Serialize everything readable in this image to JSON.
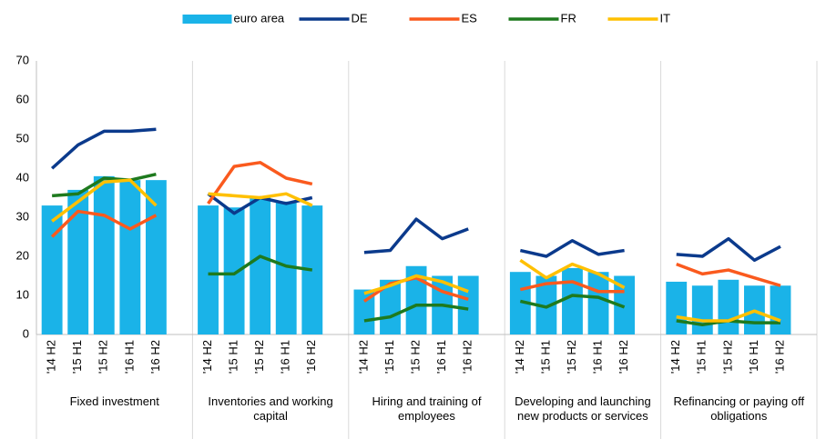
{
  "chart_data": {
    "type": "bar",
    "groups": [
      "Fixed investment",
      "Inventories and working capital",
      "Hiring and training of employees",
      "Developing and launching new products or services",
      "Refinancing or paying off obligations"
    ],
    "periods": [
      "'14 H2",
      "'15 H1",
      "'15 H2",
      "'16 H1",
      "'16 H2"
    ],
    "series": [
      {
        "name": "euro area",
        "type": "bar",
        "color": "#1ab3e8",
        "values": [
          [
            33,
            37,
            40.5,
            39.5,
            39.5
          ],
          [
            33,
            32.5,
            35,
            34,
            33
          ],
          [
            11.5,
            14,
            17.5,
            15,
            15
          ],
          [
            16,
            15,
            17,
            16,
            15
          ],
          [
            13.5,
            12.5,
            14,
            12.5,
            12.5
          ]
        ]
      },
      {
        "name": "DE",
        "type": "line",
        "color": "#0b3a8c",
        "values": [
          [
            42.5,
            48.5,
            52,
            52,
            52.5
          ],
          [
            36,
            31,
            35,
            33.5,
            35
          ],
          [
            21,
            21.5,
            29.5,
            24.5,
            27
          ],
          [
            21.5,
            20,
            24,
            20.5,
            21.5
          ],
          [
            20.5,
            20,
            24.5,
            19,
            22.5
          ]
        ]
      },
      {
        "name": "ES",
        "type": "line",
        "color": "#fa5a1e",
        "values": [
          [
            25,
            31.5,
            30.5,
            27,
            30.5
          ],
          [
            33.5,
            43,
            44,
            40,
            38.5
          ],
          [
            8.5,
            13,
            14.5,
            11,
            9
          ],
          [
            11.5,
            13,
            13.5,
            11,
            11
          ],
          [
            18,
            15.5,
            16.5,
            14.5,
            12.5
          ]
        ]
      },
      {
        "name": "FR",
        "type": "line",
        "color": "#1e7a1e",
        "values": [
          [
            35.5,
            36,
            40,
            39.5,
            41
          ],
          [
            15.5,
            15.5,
            20,
            17.5,
            16.5
          ],
          [
            3.5,
            4.5,
            7.5,
            7.5,
            6.5
          ],
          [
            8.5,
            7,
            10,
            9.5,
            7
          ],
          [
            3.5,
            2.5,
            3.5,
            3,
            3
          ]
        ]
      },
      {
        "name": "IT",
        "type": "line",
        "color": "#ffc000",
        "values": [
          [
            29,
            34,
            39,
            39.5,
            33
          ],
          [
            36,
            35.5,
            35,
            36,
            33
          ],
          [
            10.5,
            12.5,
            15,
            13.5,
            11
          ],
          [
            19,
            14.5,
            18,
            15.5,
            12
          ],
          [
            4.5,
            3.5,
            3.5,
            6,
            3.5
          ]
        ]
      }
    ],
    "ylim": [
      0,
      70
    ],
    "yticks": [
      0,
      10,
      20,
      30,
      40,
      50,
      60,
      70
    ],
    "grid": false,
    "legend": "top"
  }
}
